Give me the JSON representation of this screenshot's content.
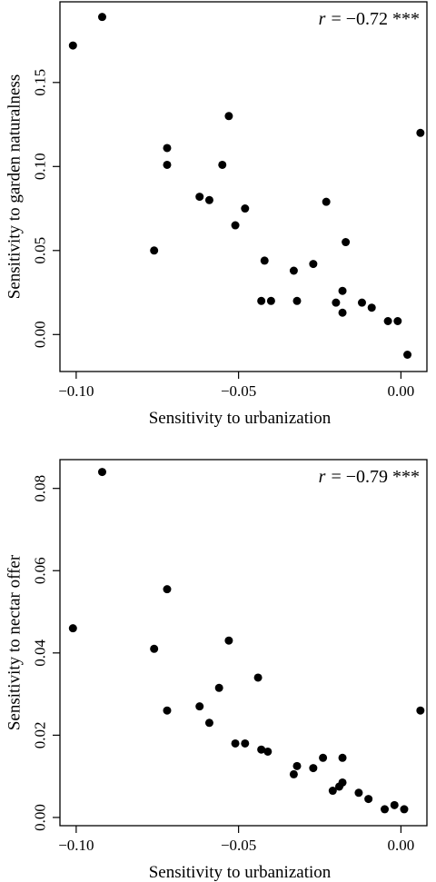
{
  "chart_data": [
    {
      "type": "scatter",
      "xlabel": "Sensitivity to urbanization",
      "ylabel": "Sensitivity to garden naturalness",
      "annotation": {
        "r_symbol": "r",
        "value_text": "= −0.72 ***"
      },
      "xlim": [
        -0.105,
        0.008
      ],
      "ylim": [
        -0.022,
        0.198
      ],
      "xticks": [
        -0.1,
        -0.05,
        0.0
      ],
      "xtick_labels": [
        "−0.10",
        "−0.05",
        "0.00"
      ],
      "yticks": [
        0.0,
        0.05,
        0.1,
        0.15
      ],
      "ytick_labels": [
        "0.00",
        "0.05",
        "0.10",
        "0.15"
      ],
      "grid": false,
      "points": [
        {
          "x": -0.101,
          "y": 0.172
        },
        {
          "x": -0.092,
          "y": 0.189
        },
        {
          "x": -0.076,
          "y": 0.05
        },
        {
          "x": -0.072,
          "y": 0.111
        },
        {
          "x": -0.072,
          "y": 0.101
        },
        {
          "x": -0.062,
          "y": 0.082
        },
        {
          "x": -0.059,
          "y": 0.08
        },
        {
          "x": -0.055,
          "y": 0.101
        },
        {
          "x": -0.053,
          "y": 0.13
        },
        {
          "x": -0.051,
          "y": 0.065
        },
        {
          "x": -0.048,
          "y": 0.075
        },
        {
          "x": -0.043,
          "y": 0.02
        },
        {
          "x": -0.042,
          "y": 0.044
        },
        {
          "x": -0.04,
          "y": 0.02
        },
        {
          "x": -0.033,
          "y": 0.038
        },
        {
          "x": -0.032,
          "y": 0.02
        },
        {
          "x": -0.027,
          "y": 0.042
        },
        {
          "x": -0.023,
          "y": 0.079
        },
        {
          "x": -0.02,
          "y": 0.019
        },
        {
          "x": -0.018,
          "y": 0.026
        },
        {
          "x": -0.018,
          "y": 0.013
        },
        {
          "x": -0.017,
          "y": 0.055
        },
        {
          "x": -0.012,
          "y": 0.019
        },
        {
          "x": -0.009,
          "y": 0.016
        },
        {
          "x": -0.004,
          "y": 0.008
        },
        {
          "x": -0.001,
          "y": 0.008
        },
        {
          "x": 0.002,
          "y": -0.012
        },
        {
          "x": 0.006,
          "y": 0.12
        }
      ]
    },
    {
      "type": "scatter",
      "xlabel": "Sensitivity to urbanization",
      "ylabel": "Sensitivity to nectar offer",
      "annotation": {
        "r_symbol": "r",
        "value_text": "= −0.79 ***"
      },
      "xlim": [
        -0.105,
        0.008
      ],
      "ylim": [
        -0.002,
        0.087
      ],
      "xticks": [
        -0.1,
        -0.05,
        0.0
      ],
      "xtick_labels": [
        "−0.10",
        "−0.05",
        "0.00"
      ],
      "yticks": [
        0.0,
        0.02,
        0.04,
        0.06,
        0.08
      ],
      "ytick_labels": [
        "0.00",
        "0.02",
        "0.04",
        "0.06",
        "0.08"
      ],
      "grid": false,
      "points": [
        {
          "x": -0.101,
          "y": 0.046
        },
        {
          "x": -0.092,
          "y": 0.084
        },
        {
          "x": -0.076,
          "y": 0.041
        },
        {
          "x": -0.072,
          "y": 0.0555
        },
        {
          "x": -0.072,
          "y": 0.026
        },
        {
          "x": -0.062,
          "y": 0.027
        },
        {
          "x": -0.059,
          "y": 0.023
        },
        {
          "x": -0.056,
          "y": 0.0315
        },
        {
          "x": -0.053,
          "y": 0.043
        },
        {
          "x": -0.051,
          "y": 0.018
        },
        {
          "x": -0.048,
          "y": 0.018
        },
        {
          "x": -0.044,
          "y": 0.034
        },
        {
          "x": -0.043,
          "y": 0.0165
        },
        {
          "x": -0.041,
          "y": 0.016
        },
        {
          "x": -0.033,
          "y": 0.0105
        },
        {
          "x": -0.032,
          "y": 0.0125
        },
        {
          "x": -0.027,
          "y": 0.012
        },
        {
          "x": -0.024,
          "y": 0.0145
        },
        {
          "x": -0.021,
          "y": 0.0065
        },
        {
          "x": -0.019,
          "y": 0.0075
        },
        {
          "x": -0.018,
          "y": 0.0085
        },
        {
          "x": -0.018,
          "y": 0.0145
        },
        {
          "x": -0.013,
          "y": 0.006
        },
        {
          "x": -0.01,
          "y": 0.0045
        },
        {
          "x": -0.005,
          "y": 0.002
        },
        {
          "x": -0.002,
          "y": 0.003
        },
        {
          "x": 0.001,
          "y": 0.002
        },
        {
          "x": 0.006,
          "y": 0.026
        }
      ]
    }
  ]
}
